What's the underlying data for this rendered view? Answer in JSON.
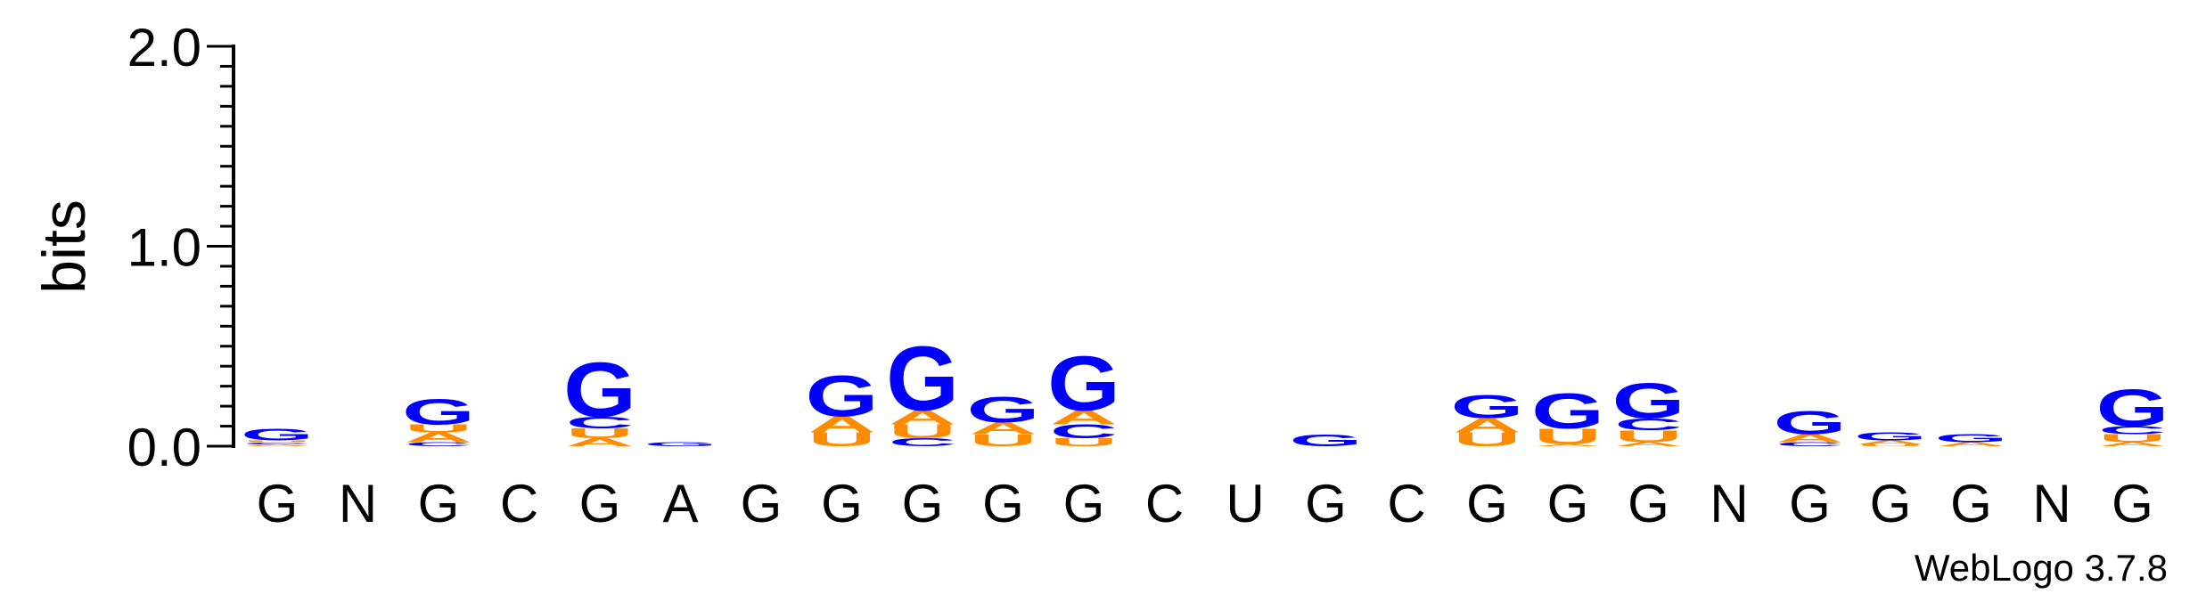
{
  "chart_data": {
    "type": "sequence-logo",
    "ylabel": "bits",
    "ylim": [
      0,
      2.0
    ],
    "yticks": [
      "0.0",
      "1.0",
      "2.0"
    ],
    "x": [
      "G",
      "N",
      "G",
      "C",
      "G",
      "A",
      "G",
      "G",
      "G",
      "G",
      "G",
      "C",
      "U",
      "G",
      "C",
      "G",
      "G",
      "G",
      "N",
      "G",
      "G",
      "G",
      "N",
      "G"
    ],
    "colors": {
      "G": "#0000ff",
      "A": "#ff8c00",
      "U": "#ff8c00",
      "C": "#0000ff"
    },
    "stacks": [
      [
        [
          "A",
          0.01
        ],
        [
          "C",
          0.01
        ],
        [
          "U",
          0.01
        ],
        [
          "G",
          0.06
        ]
      ],
      [],
      [
        [
          "C",
          0.02
        ],
        [
          "A",
          0.05
        ],
        [
          "U",
          0.04
        ],
        [
          "G",
          0.13
        ]
      ],
      [],
      [
        [
          "A",
          0.04
        ],
        [
          "U",
          0.05
        ],
        [
          "C",
          0.06
        ],
        [
          "G",
          0.28
        ]
      ],
      [
        [
          "G",
          0.02
        ]
      ],
      [],
      [
        [
          "U",
          0.07
        ],
        [
          "A",
          0.08
        ],
        [
          "G",
          0.21
        ]
      ],
      [
        [
          "C",
          0.04
        ],
        [
          "U",
          0.07
        ],
        [
          "A",
          0.07
        ],
        [
          "G",
          0.33
        ]
      ],
      [
        [
          "U",
          0.06
        ],
        [
          "A",
          0.06
        ],
        [
          "G",
          0.13
        ]
      ],
      [
        [
          "U",
          0.04
        ],
        [
          "C",
          0.07
        ],
        [
          "A",
          0.07
        ],
        [
          "G",
          0.28
        ]
      ],
      [],
      [],
      [
        [
          "G",
          0.06
        ]
      ],
      [],
      [
        [
          "U",
          0.07
        ],
        [
          "A",
          0.07
        ],
        [
          "G",
          0.12
        ]
      ],
      [
        [
          "A",
          0.01
        ],
        [
          "U",
          0.08
        ],
        [
          "G",
          0.18
        ]
      ],
      [
        [
          "A",
          0.02
        ],
        [
          "U",
          0.06
        ],
        [
          "C",
          0.06
        ],
        [
          "G",
          0.18
        ]
      ],
      [],
      [
        [
          "C",
          0.02
        ],
        [
          "A",
          0.04
        ],
        [
          "G",
          0.12
        ]
      ],
      [
        [
          "U",
          0.01
        ],
        [
          "A",
          0.02
        ],
        [
          "G",
          0.04
        ]
      ],
      [
        [
          "A",
          0.02
        ],
        [
          "G",
          0.04
        ]
      ],
      [],
      [
        [
          "A",
          0.02
        ],
        [
          "U",
          0.04
        ],
        [
          "C",
          0.04
        ],
        [
          "G",
          0.19
        ]
      ]
    ]
  },
  "footer": {
    "credit": "WebLogo 3.7.8"
  }
}
